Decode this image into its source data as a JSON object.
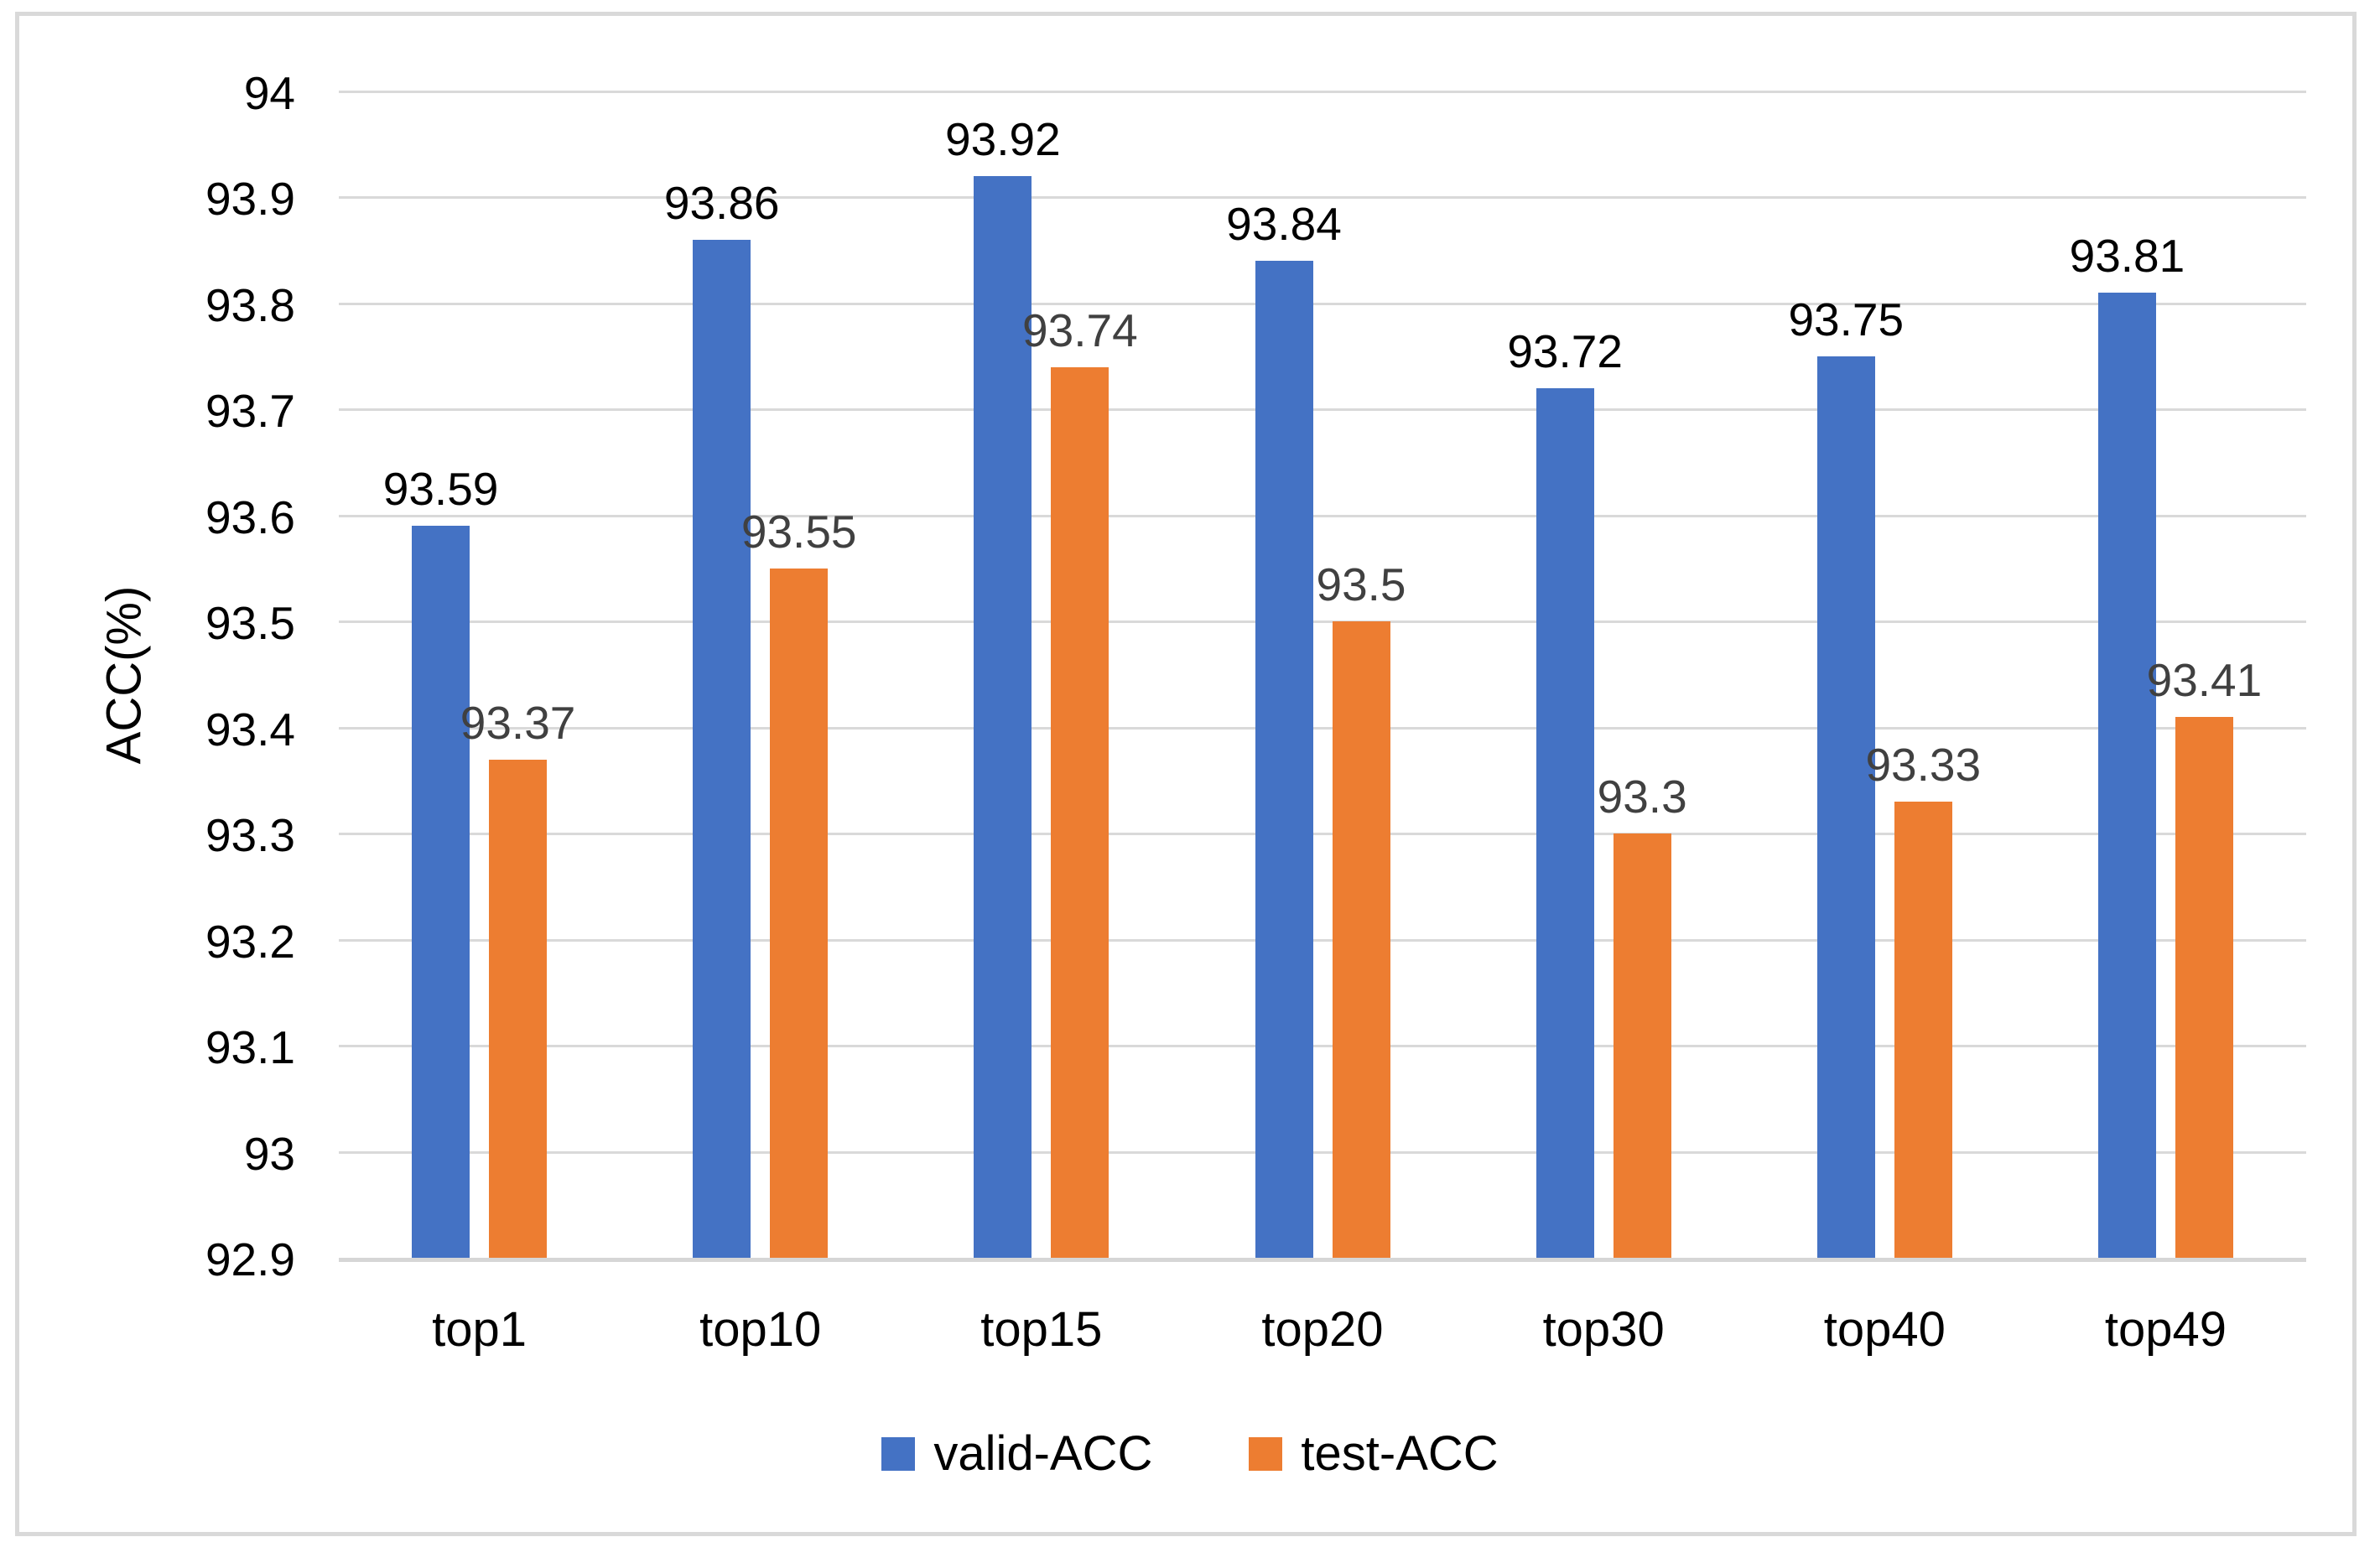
{
  "chart_data": {
    "type": "bar",
    "title": "",
    "ylabel": "ACC(%)",
    "xlabel": "",
    "ylim": [
      92.9,
      94
    ],
    "y_tick_step": 0.1,
    "y_ticks": [
      "94",
      "93.9",
      "93.8",
      "93.7",
      "93.6",
      "93.5",
      "93.4",
      "93.3",
      "93.2",
      "93.1",
      "93",
      "92.9"
    ],
    "categories": [
      "top1",
      "top10",
      "top15",
      "top20",
      "top30",
      "top40",
      "top49"
    ],
    "series": [
      {
        "name": "valid-ACC",
        "color": "#4472C4",
        "label_color": "#000000",
        "values": [
          93.59,
          93.86,
          93.92,
          93.84,
          93.72,
          93.75,
          93.81
        ]
      },
      {
        "name": "test-ACC",
        "color": "#ED7D31",
        "label_color": "#404040",
        "values": [
          93.37,
          93.55,
          93.74,
          93.5,
          93.3,
          93.33,
          93.41
        ]
      }
    ],
    "grid": true,
    "gridline_color": "#D9D9D9",
    "axis_line_color": "#D6D6D6",
    "legend_position": "bottom",
    "data_labels": true
  },
  "legend": {
    "items": [
      {
        "label": "valid-ACC",
        "color": "#4472C4"
      },
      {
        "label": "test-ACC",
        "color": "#ED7D31"
      }
    ]
  }
}
